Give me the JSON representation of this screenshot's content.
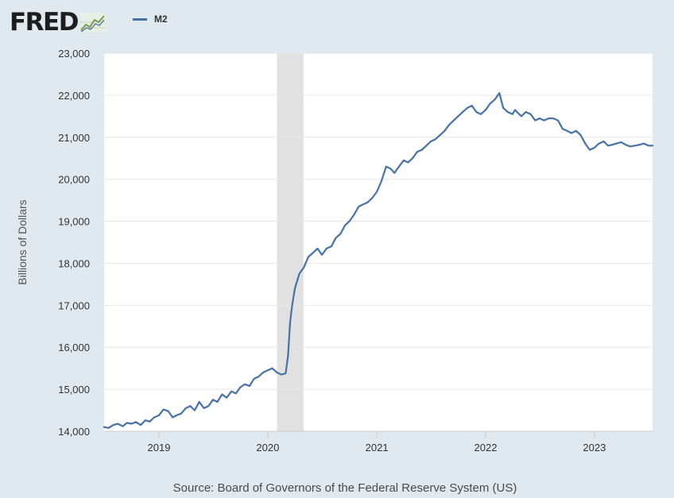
{
  "header": {
    "logo_text": "FRED",
    "legend_label": "M2"
  },
  "colors": {
    "series": "#4572a7",
    "recession": "#e1e1e1",
    "background": "#e1e9f0",
    "plot_background": "#ffffff",
    "grid": "#e6e6e6"
  },
  "source_text": "Source: Board of Governors of the Federal Reserve System (US)",
  "chart_data": {
    "type": "line",
    "title": "",
    "xlabel": "",
    "ylabel": "Billions of Dollars",
    "ylim": [
      14000,
      23000
    ],
    "xlim": [
      "2018-07-01",
      "2023-07-15"
    ],
    "yticks": [
      14000,
      15000,
      16000,
      17000,
      18000,
      19000,
      20000,
      21000,
      22000,
      23000
    ],
    "ytick_labels": [
      "14,000",
      "15,000",
      "16,000",
      "17,000",
      "18,000",
      "19,000",
      "20,000",
      "21,000",
      "22,000",
      "23,000"
    ],
    "xticks": [
      "2019-01-01",
      "2020-01-01",
      "2021-01-01",
      "2022-01-01",
      "2023-01-01"
    ],
    "xtick_labels": [
      "2019",
      "2020",
      "2021",
      "2022",
      "2023"
    ],
    "grid": "horizontal",
    "legend": "top-left",
    "recessions": [
      {
        "start": "2020-02-01",
        "end": "2020-04-30"
      }
    ],
    "series": [
      {
        "name": "M2",
        "x": [
          "2018-07-01",
          "2018-07-16",
          "2018-08-01",
          "2018-08-16",
          "2018-09-01",
          "2018-09-16",
          "2018-10-01",
          "2018-10-16",
          "2018-11-01",
          "2018-11-16",
          "2018-12-01",
          "2018-12-16",
          "2019-01-01",
          "2019-01-16",
          "2019-02-01",
          "2019-02-16",
          "2019-03-01",
          "2019-03-16",
          "2019-04-01",
          "2019-04-16",
          "2019-05-01",
          "2019-05-16",
          "2019-06-01",
          "2019-06-16",
          "2019-07-01",
          "2019-07-16",
          "2019-08-01",
          "2019-08-16",
          "2019-09-01",
          "2019-09-16",
          "2019-10-01",
          "2019-10-16",
          "2019-11-01",
          "2019-11-16",
          "2019-12-01",
          "2019-12-16",
          "2020-01-01",
          "2020-01-16",
          "2020-02-01",
          "2020-02-16",
          "2020-03-01",
          "2020-03-09",
          "2020-03-16",
          "2020-03-23",
          "2020-04-01",
          "2020-04-16",
          "2020-05-01",
          "2020-05-16",
          "2020-06-01",
          "2020-06-16",
          "2020-07-01",
          "2020-07-16",
          "2020-08-01",
          "2020-08-16",
          "2020-09-01",
          "2020-09-16",
          "2020-10-01",
          "2020-10-16",
          "2020-11-01",
          "2020-11-16",
          "2020-12-01",
          "2020-12-16",
          "2021-01-01",
          "2021-01-16",
          "2021-02-01",
          "2021-02-16",
          "2021-03-01",
          "2021-03-16",
          "2021-04-01",
          "2021-04-16",
          "2021-05-01",
          "2021-05-16",
          "2021-06-01",
          "2021-06-16",
          "2021-07-01",
          "2021-07-16",
          "2021-08-01",
          "2021-08-16",
          "2021-09-01",
          "2021-09-16",
          "2021-10-01",
          "2021-10-16",
          "2021-11-01",
          "2021-11-16",
          "2021-12-01",
          "2021-12-16",
          "2022-01-01",
          "2022-01-16",
          "2022-02-01",
          "2022-02-16",
          "2022-03-01",
          "2022-03-16",
          "2022-04-01",
          "2022-04-10",
          "2022-04-16",
          "2022-05-01",
          "2022-05-16",
          "2022-06-01",
          "2022-06-16",
          "2022-07-01",
          "2022-07-16",
          "2022-08-01",
          "2022-08-16",
          "2022-09-01",
          "2022-09-16",
          "2022-10-01",
          "2022-10-16",
          "2022-11-01",
          "2022-11-16",
          "2022-12-01",
          "2022-12-16",
          "2023-01-01",
          "2023-01-16",
          "2023-02-01",
          "2023-02-16",
          "2023-03-01",
          "2023-03-16",
          "2023-04-01",
          "2023-04-16",
          "2023-05-01",
          "2023-05-16",
          "2023-06-01",
          "2023-06-16",
          "2023-07-01",
          "2023-07-15"
        ],
        "values": [
          14100,
          14080,
          14150,
          14180,
          14120,
          14200,
          14180,
          14220,
          14150,
          14260,
          14230,
          14330,
          14380,
          14520,
          14480,
          14330,
          14380,
          14420,
          14550,
          14600,
          14500,
          14700,
          14550,
          14600,
          14750,
          14700,
          14880,
          14800,
          14950,
          14900,
          15050,
          15120,
          15080,
          15250,
          15300,
          15400,
          15450,
          15500,
          15400,
          15350,
          15380,
          15800,
          16600,
          17000,
          17400,
          17750,
          17900,
          18150,
          18250,
          18350,
          18200,
          18350,
          18400,
          18600,
          18700,
          18900,
          19000,
          19150,
          19350,
          19400,
          19450,
          19550,
          19700,
          19950,
          20300,
          20250,
          20150,
          20300,
          20450,
          20400,
          20500,
          20650,
          20700,
          20800,
          20900,
          20950,
          21050,
          21150,
          21300,
          21400,
          21500,
          21600,
          21700,
          21750,
          21600,
          21550,
          21650,
          21800,
          21900,
          22050,
          21700,
          21600,
          21550,
          21650,
          21600,
          21500,
          21600,
          21550,
          21400,
          21450,
          21400,
          21450,
          21450,
          21400,
          21200,
          21150,
          21100,
          21150,
          21050,
          20850,
          20700,
          20750,
          20850,
          20900,
          20800,
          20820,
          20850,
          20880,
          20820,
          20780,
          20800,
          20820,
          20850,
          20800,
          20800
        ]
      }
    ]
  }
}
